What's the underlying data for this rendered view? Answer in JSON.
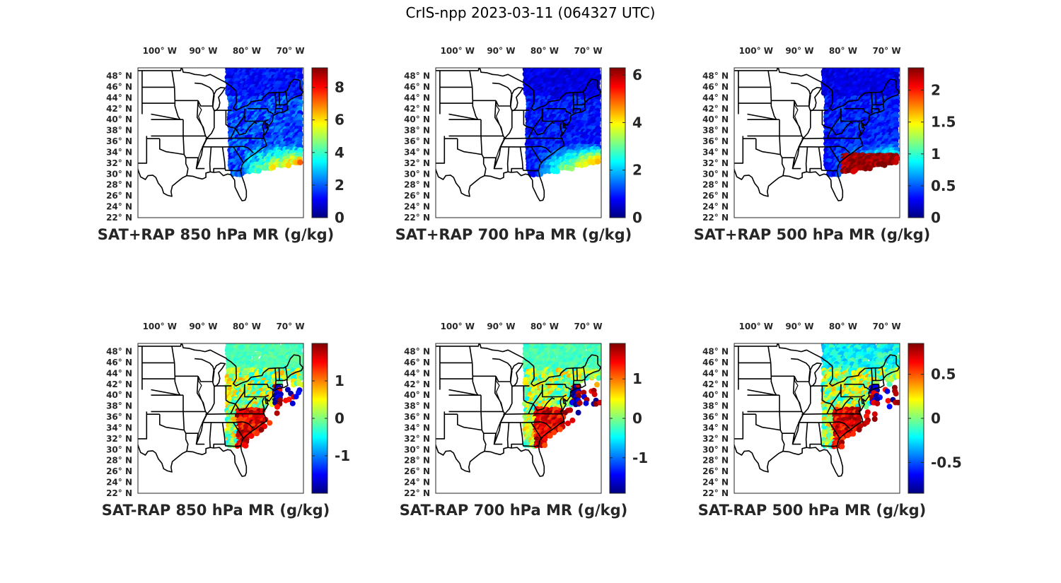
{
  "figure": {
    "title": "CrIS-npp 2023-03-11 (064327 UTC)"
  },
  "map": {
    "lon_ticks": [
      {
        "value": -100,
        "label": "100° W"
      },
      {
        "value": -90,
        "label": "90° W"
      },
      {
        "value": -80,
        "label": "80° W"
      },
      {
        "value": -70,
        "label": "70° W"
      }
    ],
    "lat_ticks": [
      {
        "value": 48,
        "label": "48° N"
      },
      {
        "value": 46,
        "label": "46° N"
      },
      {
        "value": 44,
        "label": "44° N"
      },
      {
        "value": 42,
        "label": "42° N"
      },
      {
        "value": 40,
        "label": "40° N"
      },
      {
        "value": 38,
        "label": "38° N"
      },
      {
        "value": 36,
        "label": "36° N"
      },
      {
        "value": 34,
        "label": "34° N"
      },
      {
        "value": 32,
        "label": "32° N"
      },
      {
        "value": 30,
        "label": "30° N"
      },
      {
        "value": 28,
        "label": "28° N"
      },
      {
        "value": 26,
        "label": "26° N"
      },
      {
        "value": 24,
        "label": "24° N"
      },
      {
        "value": 22,
        "label": "22° N"
      }
    ],
    "lon_range": [
      -105,
      -67
    ],
    "lat_range": [
      22,
      49.5
    ],
    "colormap": "jet",
    "outline_color": "#000000"
  },
  "panels": [
    {
      "caption": "SAT+RAP 850 hPa MR (g/kg)",
      "clim": [
        0,
        9.2
      ],
      "cb_ticks": [
        {
          "v": 0,
          "t": "0"
        },
        {
          "v": 2,
          "t": "2"
        },
        {
          "v": 4,
          "t": "4"
        },
        {
          "v": 6,
          "t": "6"
        },
        {
          "v": 8,
          "t": "8"
        }
      ],
      "kind": "total",
      "level": 850
    },
    {
      "caption": "SAT+RAP 700 hPa MR (g/kg)",
      "clim": [
        0,
        6.3
      ],
      "cb_ticks": [
        {
          "v": 0,
          "t": "0"
        },
        {
          "v": 2,
          "t": "2"
        },
        {
          "v": 4,
          "t": "4"
        },
        {
          "v": 6,
          "t": "6"
        }
      ],
      "kind": "total",
      "level": 700
    },
    {
      "caption": "SAT+RAP 500 hPa MR (g/kg)",
      "clim": [
        0,
        2.35
      ],
      "cb_ticks": [
        {
          "v": 0,
          "t": "0"
        },
        {
          "v": 0.5,
          "t": "0.5"
        },
        {
          "v": 1,
          "t": "1"
        },
        {
          "v": 1.5,
          "t": "1.5"
        },
        {
          "v": 2,
          "t": "2"
        }
      ],
      "kind": "total",
      "level": 500
    },
    {
      "caption": "SAT-RAP 850 hPa MR (g/kg)",
      "clim": [
        -2,
        2
      ],
      "cb_ticks": [
        {
          "v": -1,
          "t": "-1"
        },
        {
          "v": 0,
          "t": "0"
        },
        {
          "v": 1,
          "t": "1"
        }
      ],
      "kind": "diff",
      "level": 850
    },
    {
      "caption": "SAT-RAP 700 hPa MR (g/kg)",
      "clim": [
        -1.9,
        1.9
      ],
      "cb_ticks": [
        {
          "v": -1,
          "t": "-1"
        },
        {
          "v": 0,
          "t": "0"
        },
        {
          "v": 1,
          "t": "1"
        }
      ],
      "kind": "diff",
      "level": 700
    },
    {
      "caption": "SAT-RAP 500 hPa MR (g/kg)",
      "clim": [
        -0.85,
        0.85
      ],
      "cb_ticks": [
        {
          "v": -0.5,
          "t": "-0.5"
        },
        {
          "v": 0,
          "t": "0"
        },
        {
          "v": 0.5,
          "t": "0.5"
        }
      ],
      "kind": "diff",
      "level": 500
    }
  ]
}
